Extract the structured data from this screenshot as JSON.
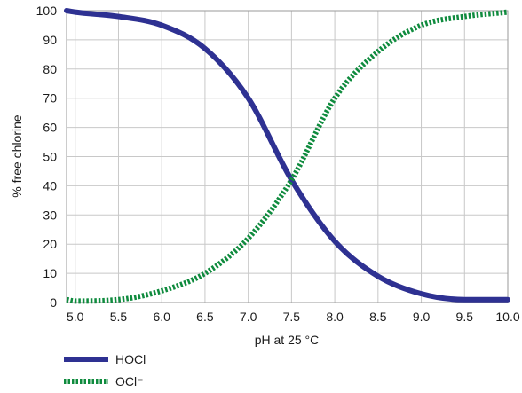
{
  "chart_data": {
    "type": "line",
    "title": "",
    "xlabel": "pH  at 25 °C",
    "ylabel": "%  free chlorine",
    "xlim": [
      4.9,
      10.0
    ],
    "ylim": [
      0,
      100
    ],
    "grid": true,
    "legend_position": "bottom-left",
    "x_ticks": [
      5.0,
      5.5,
      6.0,
      6.5,
      7.0,
      7.5,
      8.0,
      8.5,
      9.0,
      9.5,
      10.0
    ],
    "x_tick_labels": [
      "5.0",
      "5.5",
      "6.0",
      "6.5",
      "7.0",
      "7.5",
      "8.0",
      "8.5",
      "9.0",
      "9.5",
      "10.0"
    ],
    "y_ticks": [
      0,
      10,
      20,
      30,
      40,
      50,
      60,
      70,
      80,
      90,
      100
    ],
    "y_tick_labels": [
      "0",
      "10",
      "20",
      "30",
      "40",
      "50",
      "60",
      "70",
      "80",
      "90",
      "100"
    ],
    "series": [
      {
        "name": "HOCl",
        "color": "#2e3192",
        "style": "solid",
        "x": [
          4.9,
          5.0,
          5.5,
          6.0,
          6.5,
          7.0,
          7.5,
          8.0,
          8.5,
          9.0,
          9.5,
          10.0
        ],
        "y": [
          100,
          99.5,
          98,
          95,
          87,
          70,
          42,
          21,
          9,
          3,
          1,
          1
        ]
      },
      {
        "name": "OCl⁻",
        "color": "#0f8b3e",
        "style": "dotted",
        "x": [
          4.9,
          5.0,
          5.5,
          6.0,
          6.5,
          7.0,
          7.5,
          8.0,
          8.5,
          9.0,
          9.5,
          10.0
        ],
        "y": [
          1,
          0.5,
          1,
          4,
          10,
          22,
          42,
          70,
          86,
          95,
          98,
          99.5
        ]
      }
    ]
  }
}
